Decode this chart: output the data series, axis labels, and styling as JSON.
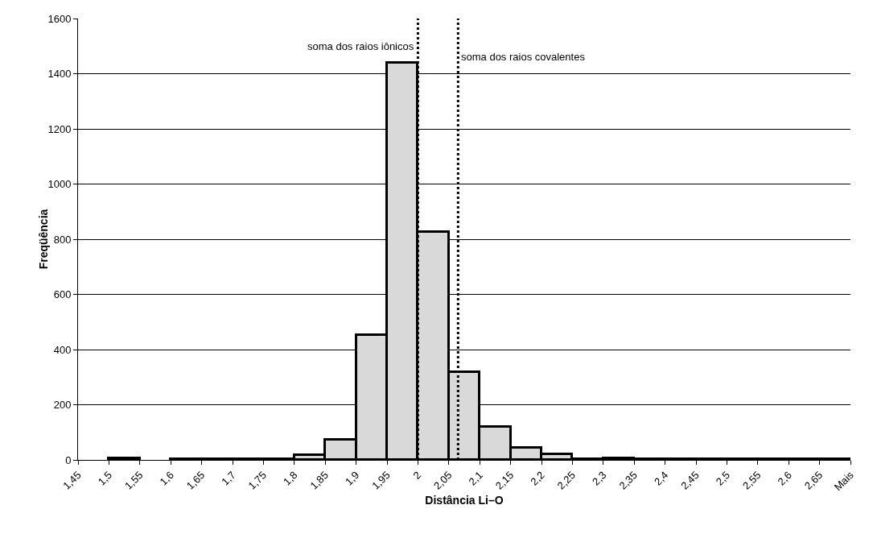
{
  "chart_data": {
    "type": "histogram",
    "xlabel": "Distância Li–O",
    "ylabel": "Freqüência",
    "bins": [
      1.45,
      1.5,
      1.55,
      1.6,
      1.65,
      1.7,
      1.75,
      1.8,
      1.85,
      1.9,
      1.95,
      2,
      2.05,
      2.1,
      2.15,
      2.2,
      2.25,
      2.3,
      2.35,
      2.4,
      2.45,
      2.5,
      2.55,
      2.6,
      2.65,
      2.7
    ],
    "values": [
      0,
      5,
      0,
      2,
      2,
      2,
      3,
      18,
      73,
      452,
      1440,
      825,
      318,
      120,
      43,
      20,
      3,
      7,
      4,
      2,
      2,
      2,
      2,
      2,
      2
    ],
    "color": "#d9d9d9",
    "xlim": [
      1.45,
      2.7
    ],
    "xticks": [
      {
        "value": 1.45,
        "label": "1,45"
      },
      {
        "value": 1.5,
        "label": "1,5"
      },
      {
        "value": 1.55,
        "label": "1,55"
      },
      {
        "value": 1.6,
        "label": "1,6"
      },
      {
        "value": 1.65,
        "label": "1,65"
      },
      {
        "value": 1.7,
        "label": "1,7"
      },
      {
        "value": 1.75,
        "label": "1,75"
      },
      {
        "value": 1.8,
        "label": "1,8"
      },
      {
        "value": 1.85,
        "label": "1,85"
      },
      {
        "value": 1.9,
        "label": "1,9"
      },
      {
        "value": 1.95,
        "label": "1,95"
      },
      {
        "value": 2,
        "label": "2"
      },
      {
        "value": 2.05,
        "label": "2,05"
      },
      {
        "value": 2.1,
        "label": "2,1"
      },
      {
        "value": 2.15,
        "label": "2,15"
      },
      {
        "value": 2.2,
        "label": "2,2"
      },
      {
        "value": 2.25,
        "label": "2,25"
      },
      {
        "value": 2.3,
        "label": "2,3"
      },
      {
        "value": 2.35,
        "label": "2,35"
      },
      {
        "value": 2.4,
        "label": "2,4"
      },
      {
        "value": 2.45,
        "label": "2,45"
      },
      {
        "value": 2.5,
        "label": "2,5"
      },
      {
        "value": 2.55,
        "label": "2,55"
      },
      {
        "value": 2.6,
        "label": "2,6"
      },
      {
        "value": 2.65,
        "label": "2,65"
      },
      {
        "value": 2.7,
        "label": "Mais"
      }
    ],
    "ylim": [
      0,
      1600
    ],
    "yticks": [
      0,
      200,
      400,
      600,
      800,
      1000,
      1200,
      1400,
      1600
    ],
    "grid": "y",
    "ref_lines": [
      {
        "axis": "x",
        "value": 2,
        "label": "soma dos raios iônicos",
        "line_style": "dotted",
        "color": "#000000"
      },
      {
        "axis": "x",
        "value": 2.065,
        "label": "soma dos raios covalentes",
        "line_style": "dotted",
        "color": "#000000"
      }
    ]
  }
}
